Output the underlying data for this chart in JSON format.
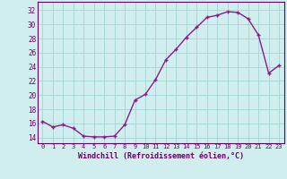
{
  "x": [
    0,
    1,
    2,
    3,
    4,
    5,
    6,
    7,
    8,
    9,
    10,
    11,
    12,
    13,
    14,
    15,
    16,
    17,
    18,
    19,
    20,
    21,
    22,
    23
  ],
  "y": [
    16.3,
    15.5,
    15.8,
    15.3,
    14.2,
    14.1,
    14.1,
    14.2,
    15.8,
    19.3,
    20.1,
    22.2,
    25.0,
    26.5,
    28.2,
    29.6,
    31.0,
    31.3,
    31.8,
    31.7,
    30.8,
    28.5,
    23.1,
    24.2
  ],
  "line_color": "#8b1a8b",
  "marker": "+",
  "markersize": 3.5,
  "linewidth": 1.0,
  "bg_color": "#d0eeee",
  "grid_color": "#a8d8d8",
  "xlabel": "Windchill (Refroidissement éolien,°C)",
  "xlabel_color": "#660066",
  "tick_color": "#660066",
  "yticks": [
    14,
    16,
    18,
    20,
    22,
    24,
    26,
    28,
    30,
    32
  ],
  "ylim": [
    13.2,
    33.2
  ],
  "xlim": [
    -0.5,
    23.5
  ],
  "xtick_fontsize": 5.0,
  "ytick_fontsize": 5.5,
  "xlabel_fontsize": 6.0
}
